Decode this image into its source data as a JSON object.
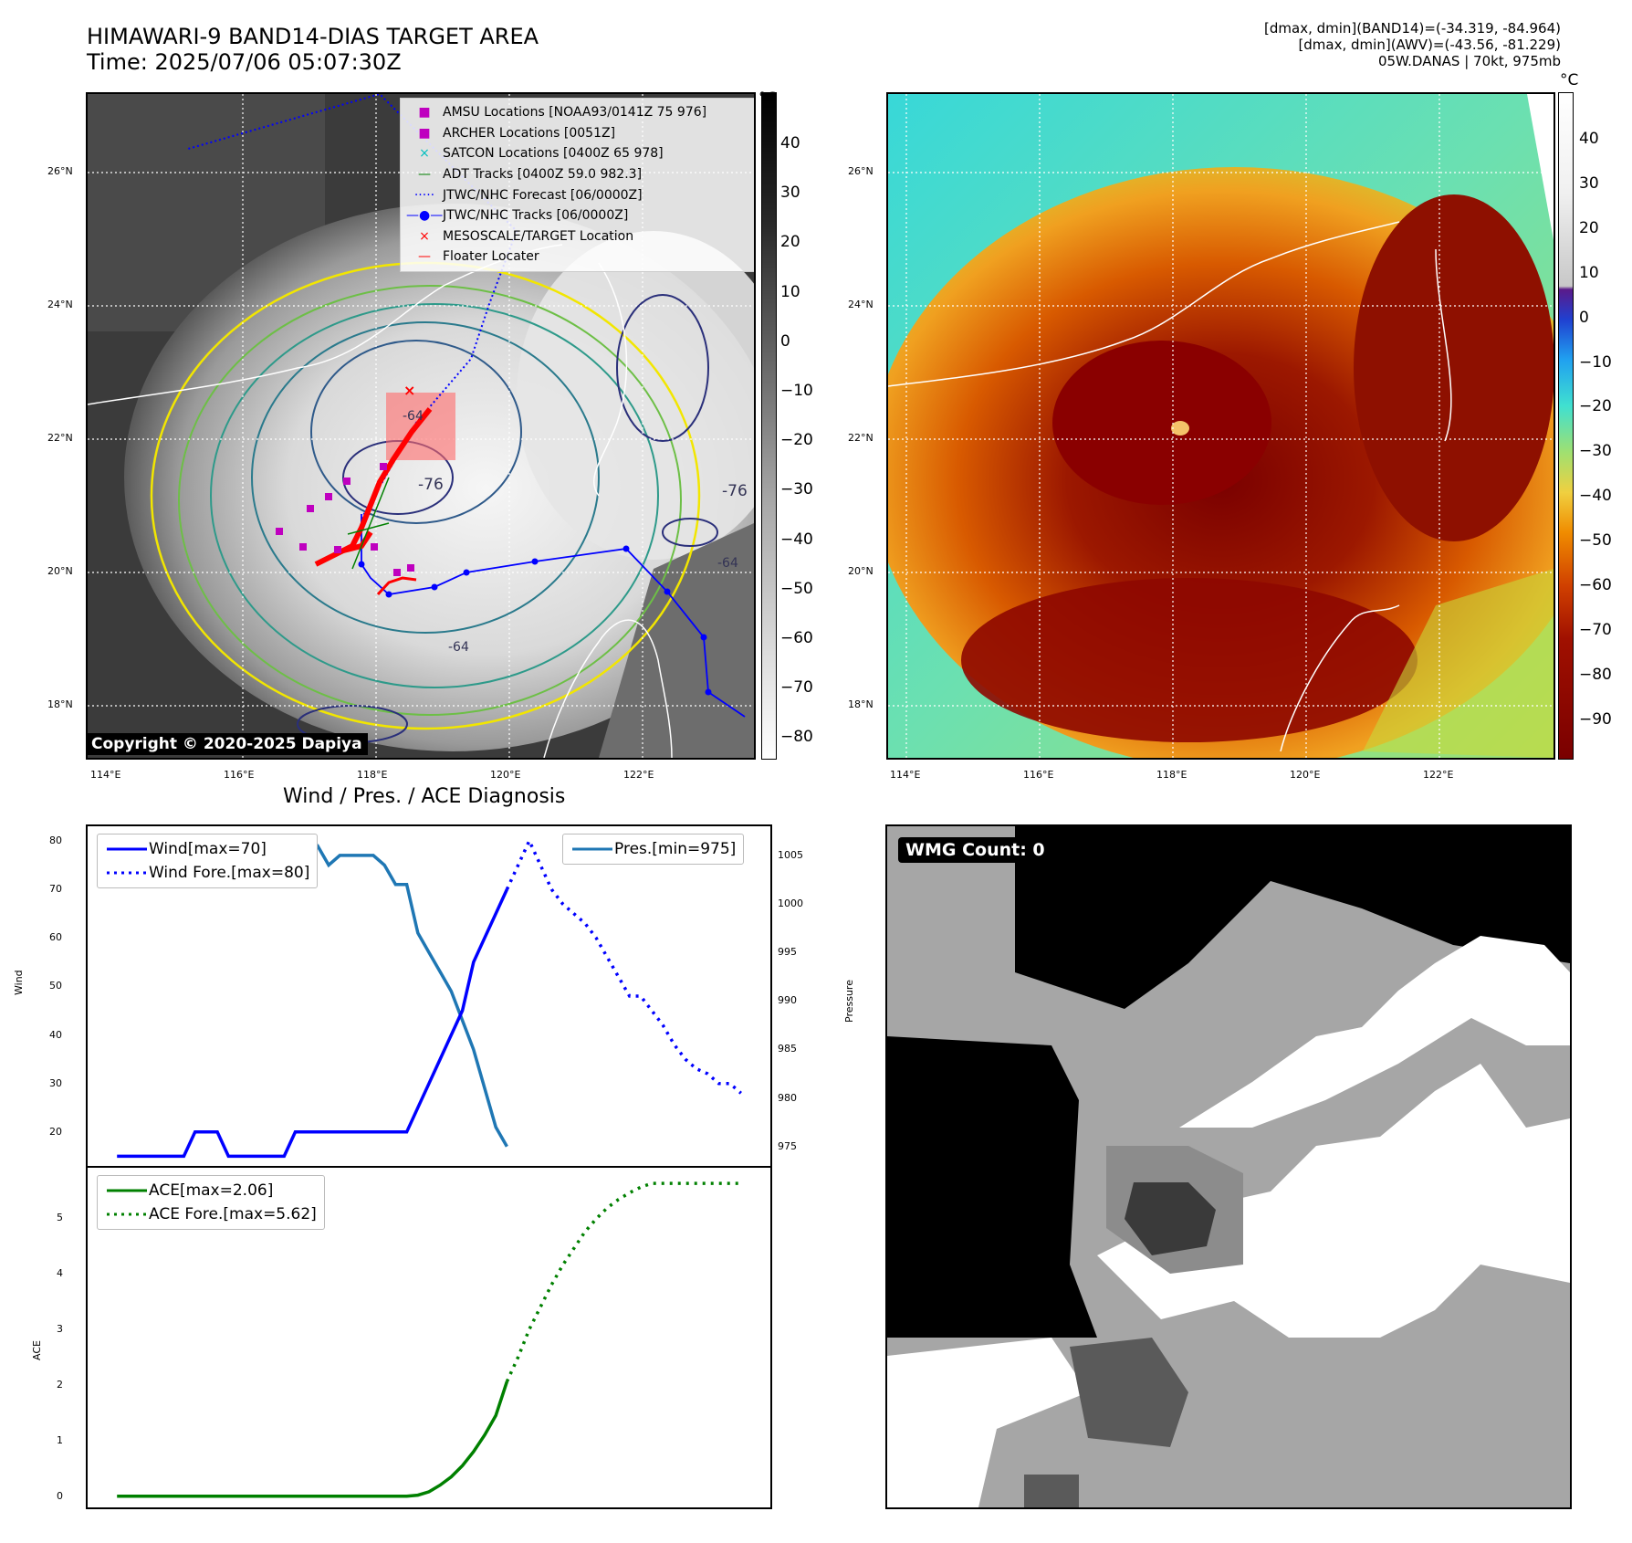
{
  "header": {
    "title_line1": "HIMAWARI-9 BAND14-DIAS TARGET AREA",
    "title_line2": "Time: 2025/07/06 05:07:30Z",
    "info_line1": "[dmax, dmin](BAND14)=(-34.319, -84.964)",
    "info_line2": "[dmax, dmin](AWV)=(-43.56, -81.229)",
    "info_line3": "05W.DANAS | 70kt, 975mb"
  },
  "map": {
    "lat_labels": [
      "26°N",
      "24°N",
      "22°N",
      "20°N",
      "18°N"
    ],
    "lon_labels": [
      "114°E",
      "116°E",
      "118°E",
      "120°E",
      "122°E"
    ],
    "legend": [
      {
        "label": "AMSU Locations [NOAA93/0141Z 75 976]",
        "symbol": "■",
        "color": "#bf00bf"
      },
      {
        "label": "ARCHER Locations [0051Z]",
        "symbol": "■",
        "color": "#bf00bf"
      },
      {
        "label": "SATCON Locations [0400Z 65 978]",
        "symbol": "×",
        "color": "#00bfbf"
      },
      {
        "label": "ADT Tracks [0400Z 59.0 982.3]",
        "symbol": "—",
        "color": "#008000"
      },
      {
        "label": "JTWC/NHC Forecast [06/0000Z]",
        "symbol": "·····",
        "color": "#0000ff"
      },
      {
        "label": "JTWC/NHC Tracks [06/0000Z]",
        "symbol": "—●—",
        "color": "#0000ff"
      },
      {
        "label": "MESOSCALE/TARGET Location",
        "symbol": "×",
        "color": "#ff0000"
      },
      {
        "label": "Floater Locater",
        "symbol": "—",
        "color": "#ff0000"
      }
    ],
    "copyright": "Copyright © 2020-2025 Dapiya",
    "contour_labels": [
      "-64",
      "-76",
      "-76",
      "-64",
      "-64"
    ]
  },
  "colorbar_left": {
    "unit": "°C",
    "ticks": [
      "40",
      "30",
      "20",
      "10",
      "0",
      "−10",
      "−20",
      "−30",
      "−40",
      "−50",
      "−60",
      "−70",
      "−80"
    ]
  },
  "colorbar_right": {
    "unit": "°C",
    "ticks": [
      "40",
      "30",
      "20",
      "10",
      "0",
      "−10",
      "−20",
      "−30",
      "−40",
      "−50",
      "−60",
      "−70",
      "−80",
      "−90"
    ]
  },
  "diagnosis": {
    "title": "Wind / Pres. / ACE Diagnosis",
    "wind_ylabel": "Wind",
    "pres_ylabel": "Pressure",
    "ace_ylabel": "ACE",
    "legend_wind": "Wind[max=70]",
    "legend_wind_fore": "Wind Fore.[max=80]",
    "legend_pres": "Pres.[min=975]",
    "legend_ace": "ACE[max=2.06]",
    "legend_ace_fore": "ACE Fore.[max=5.62]",
    "wind_ticks": [
      "80",
      "70",
      "60",
      "50",
      "40",
      "30",
      "20"
    ],
    "pres_ticks": [
      "1005",
      "1000",
      "995",
      "990",
      "985",
      "980",
      "975"
    ],
    "ace_ticks": [
      "5",
      "4",
      "3",
      "2",
      "1",
      "0"
    ]
  },
  "wmg": {
    "label": "WMG Count: 0"
  },
  "chart_data": [
    {
      "type": "line",
      "title": "Wind / Pres. / ACE Diagnosis",
      "ylabel": "Wind",
      "ylim": [
        13,
        83
      ],
      "series": [
        {
          "name": "Wind[max=70]",
          "x": [
            0,
            1,
            2,
            3,
            4,
            5,
            6,
            7,
            8,
            9,
            10,
            11,
            12,
            13,
            14,
            15,
            16,
            17,
            18,
            19,
            20,
            21,
            22,
            23,
            24,
            25,
            26,
            27,
            28,
            29,
            30,
            31,
            32,
            33,
            34,
            35
          ],
          "values": [
            15,
            15,
            15,
            15,
            15,
            15,
            15,
            20,
            20,
            20,
            15,
            15,
            15,
            15,
            15,
            15,
            20,
            20,
            20,
            20,
            20,
            20,
            20,
            20,
            20,
            20,
            20,
            25,
            30,
            35,
            40,
            45,
            55,
            60,
            65,
            70
          ]
        },
        {
          "name": "Wind Fore.[max=80]",
          "x": [
            35,
            36,
            37,
            38,
            39,
            40,
            41,
            42,
            43,
            44,
            45,
            46,
            47,
            48,
            49,
            50,
            51,
            52,
            53,
            54,
            55,
            56
          ],
          "values": [
            70,
            75,
            80,
            75,
            70,
            67,
            65,
            63,
            60,
            56,
            52,
            48,
            48,
            45,
            42,
            38,
            35,
            33,
            32,
            30,
            30,
            28
          ]
        }
      ]
    },
    {
      "type": "line",
      "ylabel": "Pressure",
      "ylim": [
        973,
        1008
      ],
      "series": [
        {
          "name": "Pres.[min=975]",
          "x": [
            0,
            1,
            2,
            3,
            4,
            5,
            6,
            7,
            8,
            9,
            10,
            11,
            12,
            13,
            14,
            15,
            16,
            17,
            18,
            19,
            20,
            21,
            22,
            23,
            24,
            25,
            26,
            27,
            28,
            29,
            30,
            31,
            32,
            33,
            34,
            35
          ],
          "values": [
            1007,
            1007,
            1007,
            1007,
            1007,
            1007,
            1005,
            1005,
            1005,
            1005,
            1005,
            1005,
            1005,
            1005,
            1006,
            1006,
            1006,
            1006,
            1006,
            1004,
            1005,
            1005,
            1005,
            1005,
            1004,
            1002,
            1002,
            997,
            995,
            993,
            991,
            988,
            985,
            981,
            977,
            975
          ]
        }
      ]
    },
    {
      "type": "line",
      "ylabel": "ACE",
      "ylim": [
        -0.2,
        5.9
      ],
      "series": [
        {
          "name": "ACE[max=2.06]",
          "x": [
            0,
            2,
            4,
            6,
            8,
            10,
            12,
            14,
            16,
            18,
            20,
            22,
            24,
            25,
            26,
            27,
            28,
            29,
            30,
            31,
            32,
            33,
            34,
            35
          ],
          "values": [
            0,
            0,
            0,
            0,
            0,
            0,
            0,
            0,
            0,
            0,
            0,
            0,
            0,
            0,
            0,
            0.02,
            0.08,
            0.2,
            0.35,
            0.55,
            0.8,
            1.1,
            1.45,
            2.06
          ]
        },
        {
          "name": "ACE Fore.[max=5.62]",
          "x": [
            35,
            36,
            37,
            38,
            39,
            40,
            41,
            42,
            43,
            44,
            45,
            46,
            47,
            48,
            49,
            50,
            51,
            52,
            53,
            54,
            55,
            56
          ],
          "values": [
            2.06,
            2.5,
            3.0,
            3.4,
            3.8,
            4.15,
            4.45,
            4.75,
            4.98,
            5.18,
            5.33,
            5.45,
            5.55,
            5.62,
            5.62,
            5.62,
            5.62,
            5.62,
            5.62,
            5.62,
            5.62,
            5.62
          ]
        }
      ]
    }
  ]
}
